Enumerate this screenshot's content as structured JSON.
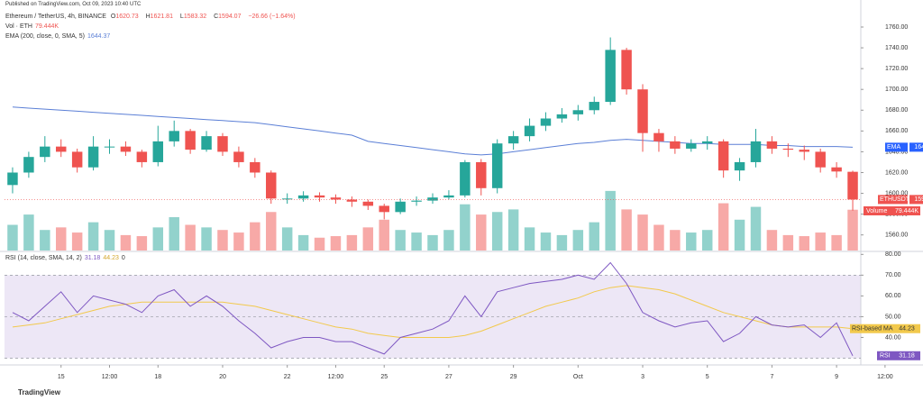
{
  "published": "Published on TradingView.com, Oct 09, 2023 10:40 UTC",
  "footer": "TradingView",
  "chart_data": {
    "type": "candlestick",
    "symbol": "Ethereum / TetherUS, 4h, BINANCE",
    "ohlc_letters": [
      "O",
      "H",
      "L",
      "C"
    ],
    "change": "−26.66 (−1.64%)",
    "volume_legend": {
      "label": "Vol · ETH",
      "value_label": "79.444K"
    },
    "ema_legend": {
      "label": "EMA (200, close, 0, SMA, 5)",
      "value": 1644.37
    },
    "rsi_legend": {
      "label": "RSI (14, close, SMA, 14, 2)",
      "values": [
        31.18,
        44.23,
        0
      ]
    },
    "open": [
      1608,
      1620,
      1635,
      1645,
      1640,
      1625,
      1645,
      1645,
      1640,
      1630,
      1650,
      1660,
      1642,
      1655,
      1640,
      1630,
      1620,
      1595,
      1595,
      1598,
      1596,
      1594,
      1592,
      1588,
      1582,
      1592,
      1593,
      1596,
      1598,
      1630,
      1605,
      1648,
      1655,
      1665,
      1672,
      1676,
      1680,
      1688,
      1738,
      1700,
      1658,
      1650,
      1643,
      1648,
      1650,
      1622,
      1630,
      1650,
      1643,
      1642,
      1640,
      1625,
      1620.73
    ],
    "high": [
      1625,
      1640,
      1655,
      1652,
      1643,
      1655,
      1652,
      1650,
      1642,
      1665,
      1670,
      1662,
      1660,
      1658,
      1645,
      1634,
      1622,
      1600,
      1602,
      1601,
      1599,
      1597,
      1594,
      1590,
      1595,
      1597,
      1600,
      1603,
      1632,
      1633,
      1652,
      1660,
      1672,
      1678,
      1682,
      1685,
      1693,
      1750,
      1740,
      1705,
      1662,
      1655,
      1652,
      1655,
      1652,
      1634,
      1662,
      1655,
      1648,
      1646,
      1643,
      1630,
      1621.81
    ],
    "low": [
      1600,
      1615,
      1630,
      1635,
      1620,
      1622,
      1638,
      1636,
      1625,
      1626,
      1645,
      1638,
      1640,
      1636,
      1625,
      1615,
      1590,
      1590,
      1592,
      1592,
      1590,
      1587,
      1584,
      1575,
      1580,
      1588,
      1590,
      1594,
      1596,
      1598,
      1600,
      1642,
      1650,
      1660,
      1668,
      1670,
      1676,
      1685,
      1695,
      1640,
      1640,
      1638,
      1640,
      1642,
      1615,
      1612,
      1625,
      1638,
      1635,
      1632,
      1620,
      1615,
      1583.32
    ],
    "close": [
      1620,
      1635,
      1645,
      1640,
      1625,
      1645,
      1645,
      1640,
      1630,
      1650,
      1660,
      1642,
      1655,
      1640,
      1630,
      1620,
      1595,
      1595,
      1598,
      1596,
      1594,
      1592,
      1588,
      1582,
      1592,
      1593,
      1596,
      1598,
      1630,
      1605,
      1648,
      1655,
      1665,
      1672,
      1676,
      1680,
      1688,
      1738,
      1700,
      1658,
      1650,
      1643,
      1648,
      1650,
      1622,
      1630,
      1650,
      1643,
      1642,
      1640,
      1625,
      1621,
      1594.07
    ],
    "volume": [
      50000,
      70000,
      40000,
      45000,
      35000,
      55000,
      40000,
      30000,
      28000,
      45000,
      65000,
      50000,
      45000,
      40000,
      35000,
      55000,
      75000,
      45000,
      30000,
      25000,
      28000,
      30000,
      45000,
      60000,
      40000,
      35000,
      30000,
      40000,
      90000,
      70000,
      75000,
      80000,
      45000,
      35000,
      30000,
      40000,
      55000,
      116000,
      80000,
      70000,
      50000,
      40000,
      35000,
      40000,
      92000,
      60000,
      85000,
      40000,
      30000,
      28000,
      35000,
      30000,
      79444
    ],
    "ema": [
      1683,
      1682,
      1681,
      1680,
      1679,
      1678,
      1677,
      1676,
      1675,
      1674,
      1673,
      1672,
      1671,
      1670,
      1669,
      1668,
      1666,
      1664,
      1662,
      1660,
      1658,
      1656,
      1650,
      1648,
      1646,
      1644,
      1642,
      1640,
      1638,
      1637,
      1638,
      1640,
      1642,
      1644,
      1646,
      1648,
      1649,
      1651,
      1652,
      1651,
      1650,
      1649,
      1648,
      1648,
      1647,
      1647,
      1647,
      1646,
      1646,
      1645,
      1645,
      1645,
      1644.37
    ],
    "rsi": [
      52,
      48,
      55,
      62,
      52,
      60,
      58,
      56,
      52,
      60,
      63,
      55,
      60,
      55,
      48,
      42,
      35,
      38,
      40,
      40,
      38,
      38,
      35,
      32,
      40,
      42,
      44,
      48,
      60,
      50,
      62,
      64,
      66,
      67,
      68,
      70,
      68,
      76,
      66,
      52,
      48,
      45,
      47,
      48,
      38,
      42,
      50,
      46,
      45,
      46,
      40,
      47,
      31.18
    ],
    "rsi_ma": [
      45,
      46,
      47,
      49,
      51,
      53,
      55,
      56,
      57,
      57,
      57,
      57,
      57,
      57,
      56,
      55,
      53,
      51,
      49,
      47,
      45,
      44,
      42,
      41,
      40,
      40,
      40,
      40,
      41,
      43,
      46,
      49,
      52,
      55,
      57,
      59,
      62,
      64,
      65,
      64,
      63,
      61,
      58,
      55,
      52,
      50,
      48,
      46,
      45,
      45,
      45,
      45,
      44.23
    ],
    "xlim": [
      -0.5,
      52.5
    ],
    "xticks": [
      {
        "value": 3,
        "label": "15"
      },
      {
        "value": 6,
        "label": "12:00"
      },
      {
        "value": 9,
        "label": "18"
      },
      {
        "value": 13,
        "label": "20"
      },
      {
        "value": 17,
        "label": "22"
      },
      {
        "value": 20,
        "label": "12:00"
      },
      {
        "value": 23,
        "label": "25"
      },
      {
        "value": 27,
        "label": "27"
      },
      {
        "value": 31,
        "label": "29"
      },
      {
        "value": 35,
        "label": "Oct"
      },
      {
        "value": 39,
        "label": "3"
      },
      {
        "value": 43,
        "label": "5"
      },
      {
        "value": 47,
        "label": "7"
      },
      {
        "value": 51,
        "label": "9"
      },
      {
        "value": 54,
        "label": "12:00"
      }
    ],
    "ylim": [
      1545,
      1773
    ],
    "yticks": [
      {
        "value": 1560,
        "label": "1560.00"
      },
      {
        "value": 1580,
        "label": "1580.00"
      },
      {
        "value": 1600,
        "label": "1600.00"
      },
      {
        "value": 1620,
        "label": "1620.00"
      },
      {
        "value": 1640,
        "label": "1640.00"
      },
      {
        "value": 1660,
        "label": "1660.00"
      },
      {
        "value": 1680,
        "label": "1680.00"
      },
      {
        "value": 1700,
        "label": "1700.00"
      },
      {
        "value": 1720,
        "label": "1720.00"
      },
      {
        "value": 1740,
        "label": "1740.00"
      },
      {
        "value": 1760,
        "label": "1760.00"
      }
    ],
    "rsi_ylim": [
      30,
      81
    ],
    "rsi_yticks": [
      {
        "value": 40,
        "label": "40.00"
      },
      {
        "value": 50,
        "label": "50.00"
      },
      {
        "value": 60,
        "label": "60.00"
      },
      {
        "value": 70,
        "label": "70.00"
      },
      {
        "value": 80,
        "label": "80.00"
      }
    ],
    "rsi_levels": [
      70,
      50,
      30
    ],
    "badges": {
      "ema": "EMA",
      "price": "ETHUSDT",
      "volume": "Volume",
      "rsi_ma": "RSI-based MA",
      "rsi": "RSI"
    },
    "colors": {
      "up": "#26a69a",
      "down": "#ef5350",
      "ema": "#5b7fd6",
      "rsi": "#7e57c2",
      "rsi_ma": "#f2c94c",
      "band": "#ede7f6"
    }
  }
}
